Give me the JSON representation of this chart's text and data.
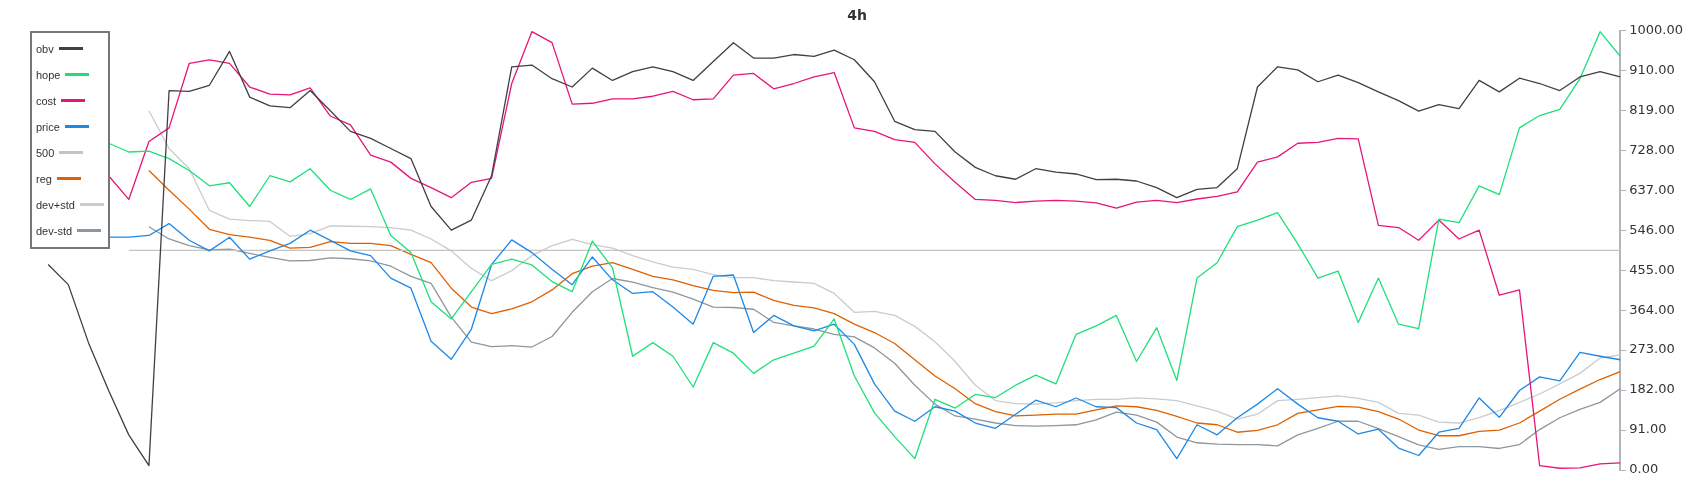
{
  "chart_data": {
    "type": "line",
    "title": "4h",
    "categories": [
      null,
      null,
      null,
      null,
      null,
      null,
      null,
      null,
      null,
      null,
      null,
      null,
      null,
      null,
      null,
      null,
      null,
      null,
      null,
      null,
      null,
      null,
      null,
      null,
      null,
      null,
      null,
      null,
      null,
      null,
      null,
      null,
      null,
      null,
      null,
      null,
      null,
      null,
      null,
      null,
      null,
      null,
      null,
      null,
      null,
      null,
      null,
      null,
      null,
      null,
      null,
      null,
      null,
      null,
      null,
      null,
      null,
      null,
      null,
      null,
      null,
      null,
      null,
      null,
      null,
      null,
      null,
      null,
      null,
      null,
      null,
      null,
      null,
      null,
      null,
      null,
      null,
      null,
      null,
      null
    ],
    "series": [
      {
        "name": "obv",
        "color": "#404040",
        "values": [
          null,
          468,
          422,
          290,
          181,
          80,
          10,
          864,
          862,
          876,
          953,
          849,
          829,
          825,
          864,
          818,
          771,
          755,
          732,
          709,
          600,
          546,
          569,
          670,
          918,
          922,
          891,
          872,
          915,
          887,
          907,
          918,
          907,
          887,
          930,
          973,
          938,
          938,
          946,
          942,
          956,
          934,
          884,
          794,
          775,
          771,
          724,
          689,
          670,
          662,
          686,
          678,
          674,
          661,
          662,
          658,
          643,
          620,
          639,
          643,
          686,
          872,
          918,
          911,
          884,
          899,
          882,
          861,
          841,
          817,
          832,
          823,
          887,
          861,
          892,
          880,
          864,
          895,
          907,
          895
        ]
      },
      {
        "name": "hope",
        "color": "#1ee07a",
        "values": [
          null,
          null,
          null,
          null,
          744,
          724,
          726,
          709,
          682,
          647,
          654,
          600,
          670,
          656,
          686,
          637,
          616,
          640,
          534,
          495,
          383,
          344,
          406,
          468,
          480,
          467,
          429,
          406,
          521,
          460,
          259,
          290,
          259,
          189,
          290,
          266,
          220,
          251,
          266,
          282,
          344,
          214,
          130,
          76,
          26,
          161,
          141,
          172,
          165,
          193,
          216,
          196,
          309,
          328,
          352,
          247,
          324,
          204,
          437,
          472,
          554,
          569,
          586,
          515,
          437,
          453,
          336,
          437,
          332,
          322,
          571,
          563,
          647,
          627,
          779,
          807,
          821,
          891,
          998,
          942
        ]
      },
      {
        "name": "cost",
        "color": "#e6157a",
        "values": [
          null,
          null,
          null,
          null,
          670,
          616,
          748,
          779,
          926,
          934,
          926,
          872,
          856,
          854,
          870,
          806,
          786,
          717,
          701,
          664,
          643,
          620,
          655,
          664,
          880,
          998,
          973,
          833,
          835,
          845,
          845,
          851,
          862,
          843,
          845,
          899,
          903,
          868,
          880,
          895,
          905,
          779,
          771,
          752,
          746,
          697,
          655,
          616,
          614,
          609,
          612,
          614,
          612,
          608,
          596,
          610,
          614,
          609,
          617,
          623,
          633,
          701,
          713,
          744,
          746,
          755,
          754,
          557,
          552,
          523,
          569,
          526,
          546,
          398,
          410,
          10,
          4,
          5,
          14,
          16
        ]
      },
      {
        "name": "price",
        "color": "#1e88e5",
        "values": [
          null,
          null,
          null,
          null,
          530,
          530,
          534,
          561,
          523,
          499,
          530,
          480,
          499,
          516,
          546,
          523,
          499,
          488,
          437,
          414,
          293,
          252,
          321,
          468,
          524,
          495,
          457,
          422,
          485,
          433,
          402,
          406,
          371,
          332,
          441,
          444,
          313,
          352,
          328,
          317,
          332,
          286,
          196,
          134,
          111,
          144,
          134,
          107,
          95,
          127,
          159,
          144,
          164,
          144,
          142,
          107,
          92,
          26,
          103,
          80,
          119,
          150,
          185,
          150,
          119,
          111,
          82,
          93,
          50,
          33,
          86,
          95,
          164,
          120,
          181,
          212,
          203,
          268,
          259,
          251
        ]
      },
      {
        "name": "500",
        "color": "#c4c4c4",
        "values": [
          null,
          null,
          null,
          null,
          null,
          500,
          500,
          500,
          500,
          500,
          500,
          500,
          500,
          500,
          500,
          500,
          500,
          500,
          500,
          500,
          500,
          500,
          500,
          500,
          500,
          500,
          500,
          500,
          500,
          500,
          500,
          500,
          500,
          500,
          500,
          500,
          500,
          500,
          500,
          500,
          500,
          500,
          500,
          500,
          500,
          500,
          500,
          500,
          500,
          500,
          500,
          500,
          500,
          500,
          500,
          500,
          500,
          500,
          500,
          500,
          500,
          500,
          500,
          500,
          500,
          500,
          500,
          500,
          500,
          500,
          500,
          500,
          500,
          500,
          500,
          500,
          500,
          500,
          500,
          500
        ]
      },
      {
        "name": "reg",
        "color": "#e06000",
        "values": [
          null,
          null,
          null,
          null,
          null,
          null,
          682,
          637,
          594,
          548,
          536,
          530,
          523,
          505,
          507,
          520,
          516,
          516,
          511,
          491,
          472,
          414,
          371,
          356,
          367,
          383,
          410,
          447,
          464,
          472,
          457,
          441,
          433,
          420,
          409,
          404,
          405,
          386,
          375,
          369,
          356,
          332,
          313,
          288,
          251,
          214,
          185,
          151,
          133,
          123,
          125,
          127,
          127,
          137,
          146,
          144,
          136,
          122,
          107,
          103,
          86,
          90,
          103,
          129,
          137,
          145,
          143,
          133,
          116,
          91,
          78,
          78,
          88,
          91,
          107,
          134,
          161,
          184,
          206,
          224
        ]
      },
      {
        "name": "dev+std",
        "color": "#c8ccd0",
        "values": [
          null,
          null,
          null,
          null,
          null,
          null,
          818,
          732,
          686,
          591,
          571,
          568,
          566,
          532,
          538,
          556,
          555,
          554,
          552,
          546,
          526,
          499,
          459,
          431,
          454,
          488,
          511,
          525,
          513,
          505,
          488,
          474,
          462,
          457,
          445,
          438,
          438,
          431,
          428,
          425,
          402,
          359,
          361,
          352,
          327,
          292,
          247,
          193,
          158,
          151,
          150,
          153,
          158,
          161,
          161,
          164,
          162,
          158,
          146,
          134,
          116,
          127,
          158,
          161,
          165,
          169,
          163,
          154,
          129,
          125,
          109,
          107,
          119,
          135,
          154,
          173,
          196,
          220,
          255,
          262
        ]
      },
      {
        "name": "dev-std",
        "color": "#8c979f",
        "values": [
          null,
          null,
          null,
          null,
          null,
          null,
          554,
          526,
          511,
          501,
          503,
          493,
          484,
          476,
          477,
          483,
          481,
          476,
          464,
          441,
          425,
          348,
          291,
          281,
          283,
          280,
          304,
          359,
          406,
          436,
          428,
          415,
          405,
          389,
          371,
          370,
          366,
          336,
          328,
          321,
          309,
          303,
          278,
          243,
          193,
          150,
          123,
          116,
          107,
          101,
          100,
          101,
          103,
          114,
          132,
          125,
          109,
          75,
          62,
          59,
          58,
          58,
          55,
          80,
          95,
          111,
          111,
          94,
          76,
          57,
          47,
          53,
          53,
          49,
          58,
          92,
          119,
          138,
          154,
          185
        ]
      }
    ],
    "ylim": [
      0,
      1000
    ],
    "yticks": [
      {
        "value": 0,
        "label": "0.00"
      },
      {
        "value": 91,
        "label": "91.00"
      },
      {
        "value": 182,
        "label": "182.00"
      },
      {
        "value": 273,
        "label": "273.00"
      },
      {
        "value": 364,
        "label": "364.00"
      },
      {
        "value": 455,
        "label": "455.00"
      },
      {
        "value": 546,
        "label": "546.00"
      },
      {
        "value": 637,
        "label": "637.00"
      },
      {
        "value": 728,
        "label": "728.00"
      },
      {
        "value": 819,
        "label": "819.00"
      },
      {
        "value": 910,
        "label": "910.00"
      },
      {
        "value": 1000,
        "label": "1000.00"
      }
    ],
    "legend": "top left",
    "tick_labels": "y"
  }
}
